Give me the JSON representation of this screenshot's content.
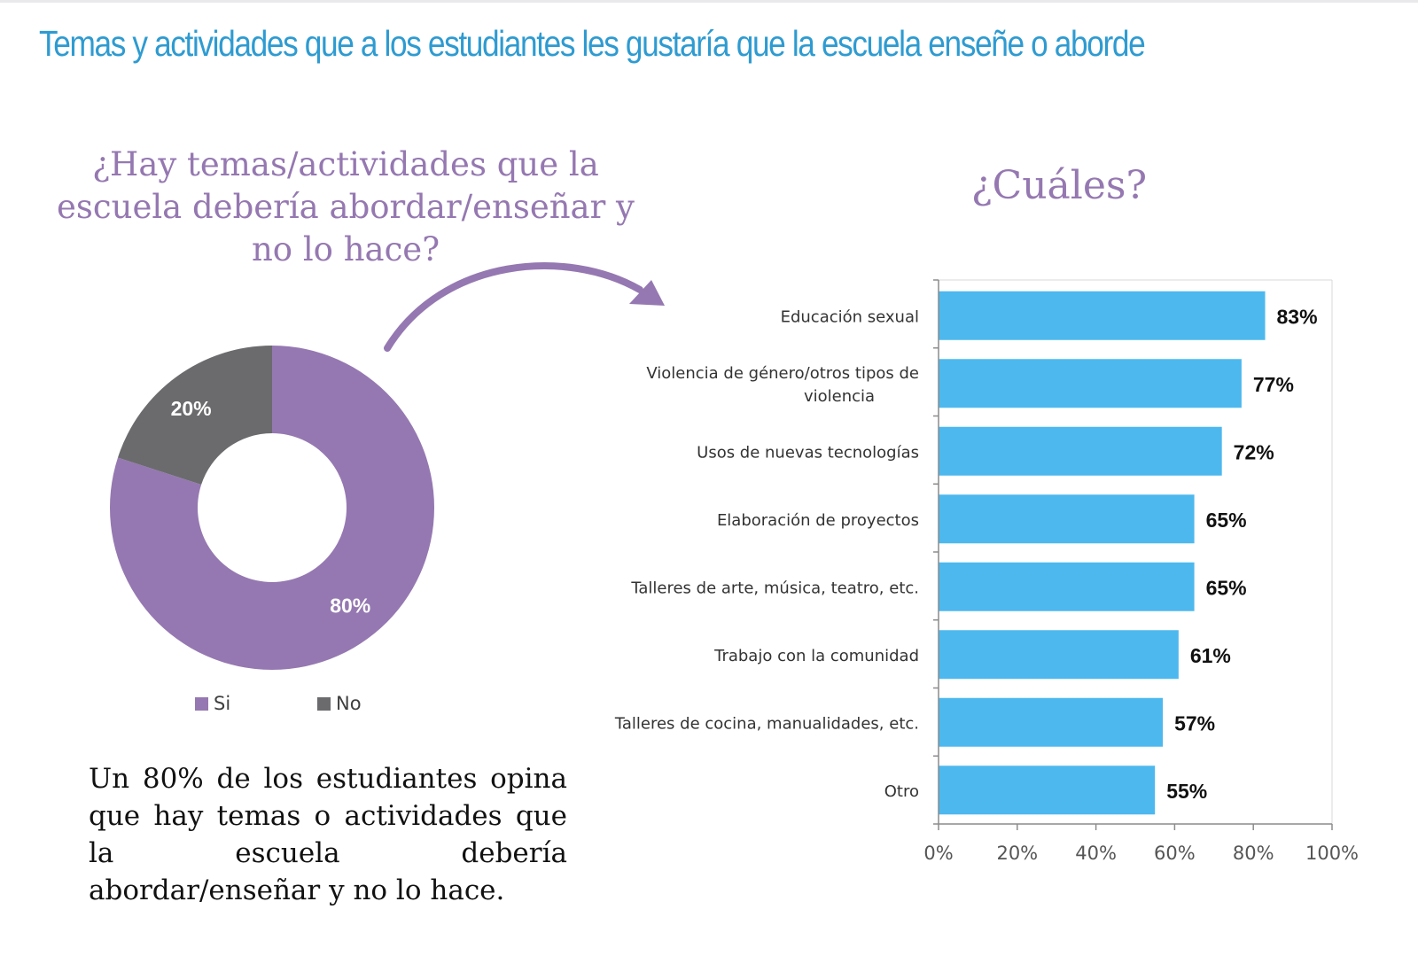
{
  "page": {
    "title": "Temas y actividades que a los estudiantes les gustaría que la escuela enseñe o aborde",
    "question": "¿Hay temas/actividades que la escuela debería abordar/enseñar y no lo hace?",
    "bar_heading": "¿Cuáles?",
    "summary": "Un 80% de los estudiantes opina que hay temas o actividades que la escuela debería abordar/enseñar y no lo hace."
  },
  "colors": {
    "title": "#2e9bd1",
    "accent": "#9578b1",
    "yes": "#9578b1",
    "no": "#6b6b6e",
    "bar": "#4db8ee"
  },
  "chart_data": [
    {
      "type": "pie",
      "style": "donut",
      "title": "¿Hay temas/actividades que la escuela debería abordar/enseñar y no lo hace?",
      "categories": [
        "Si",
        "No"
      ],
      "values": [
        80,
        20
      ],
      "labels": [
        "80%",
        "20%"
      ],
      "colors": [
        "#9578b1",
        "#6b6b6e"
      ],
      "legend": "bottom"
    },
    {
      "type": "bar",
      "orientation": "horizontal",
      "title": "¿Cuáles?",
      "categories": [
        "Educación sexual",
        "Violencia de género/otros tipos de violencia",
        "Usos de nuevas tecnologías",
        "Elaboración de proyectos",
        "Talleres de arte, música, teatro, etc.",
        "Trabajo con la comunidad",
        "Talleres de cocina, manualidades, etc.",
        "Otro"
      ],
      "category_lines": [
        [
          "Educación sexual"
        ],
        [
          "Violencia de género/otros tipos de",
          "violencia"
        ],
        [
          "Usos de nuevas tecnologías"
        ],
        [
          "Elaboración de proyectos"
        ],
        [
          "Talleres de arte, música, teatro, etc."
        ],
        [
          "Trabajo con la comunidad"
        ],
        [
          "Talleres de cocina, manualidades, etc."
        ],
        [
          "Otro"
        ]
      ],
      "values": [
        83,
        77,
        72,
        65,
        65,
        61,
        57,
        55
      ],
      "value_labels": [
        "83%",
        "77%",
        "72%",
        "65%",
        "65%",
        "61%",
        "57%",
        "55%"
      ],
      "xlim": [
        0,
        100
      ],
      "xticks": [
        "0%",
        "20%",
        "40%",
        "60%",
        "80%",
        "100%"
      ],
      "color": "#4db8ee",
      "grid": false
    }
  ]
}
